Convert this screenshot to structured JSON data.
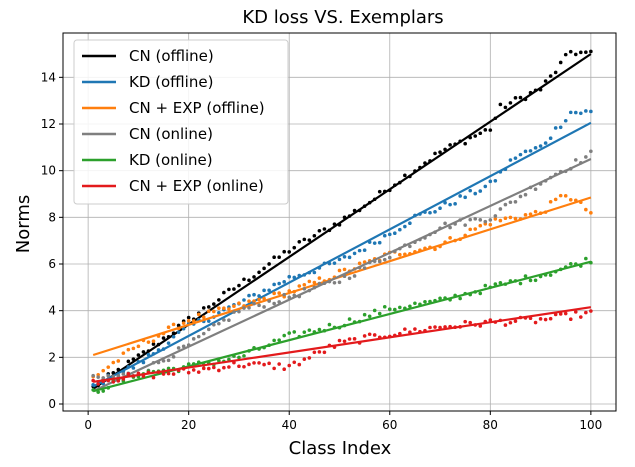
{
  "chart_data": {
    "type": "scatter",
    "title": "KD loss VS. Exemplars",
    "xlabel": "Class Index",
    "ylabel": "Norms",
    "xlim": [
      -5,
      105
    ],
    "ylim": [
      -0.3,
      15.9
    ],
    "xticks": [
      0,
      20,
      40,
      60,
      80,
      100
    ],
    "yticks": [
      0,
      2,
      4,
      6,
      8,
      10,
      12,
      14
    ],
    "grid": true,
    "legend_position": "top-left",
    "x_range": [
      1,
      100
    ],
    "series": [
      {
        "name": "CN (offline)",
        "color": "#000000",
        "fit": [
          0.65,
          15.0
        ],
        "dots": [
          [
            2,
            0.85
          ],
          [
            10,
            2.0
          ],
          [
            20,
            3.6
          ],
          [
            30,
            5.1
          ],
          [
            40,
            6.6
          ],
          [
            50,
            7.8
          ],
          [
            57,
            8.8
          ],
          [
            60,
            9.3
          ],
          [
            70,
            10.8
          ],
          [
            80,
            11.8
          ],
          [
            82,
            12.7
          ],
          [
            90,
            13.5
          ],
          [
            92,
            14.0
          ],
          [
            96,
            15.1
          ],
          [
            100,
            15.0
          ]
        ]
      },
      {
        "name": "KD (offline)",
        "color": "#1f77b4",
        "fit": [
          0.75,
          12.05
        ],
        "dots": [
          [
            2,
            0.9
          ],
          [
            10,
            1.7
          ],
          [
            20,
            3.3
          ],
          [
            30,
            4.3
          ],
          [
            40,
            5.4
          ],
          [
            50,
            6.1
          ],
          [
            60,
            7.3
          ],
          [
            65,
            8.0
          ],
          [
            70,
            8.4
          ],
          [
            80,
            9.4
          ],
          [
            85,
            10.6
          ],
          [
            90,
            11.0
          ],
          [
            96,
            12.5
          ],
          [
            100,
            12.5
          ]
        ]
      },
      {
        "name": "CN + EXP (offline)",
        "color": "#ff7f0e",
        "fit": [
          2.1,
          8.85
        ],
        "dots": [
          [
            2,
            1.3
          ],
          [
            10,
            2.5
          ],
          [
            20,
            3.6
          ],
          [
            30,
            4.2
          ],
          [
            40,
            4.8
          ],
          [
            50,
            5.6
          ],
          [
            60,
            6.4
          ],
          [
            70,
            6.8
          ],
          [
            80,
            7.8
          ],
          [
            90,
            8.2
          ],
          [
            95,
            9.0
          ],
          [
            100,
            8.2
          ]
        ]
      },
      {
        "name": "CN (online)",
        "color": "#7f7f7f",
        "fit": [
          0.55,
          10.5
        ],
        "dots": [
          [
            2,
            1.1
          ],
          [
            10,
            1.3
          ],
          [
            20,
            2.5
          ],
          [
            30,
            4.0
          ],
          [
            40,
            4.6
          ],
          [
            50,
            5.3
          ],
          [
            60,
            6.4
          ],
          [
            70,
            7.6
          ],
          [
            80,
            8.0
          ],
          [
            90,
            9.5
          ],
          [
            100,
            10.7
          ]
        ]
      },
      {
        "name": "KD (online)",
        "color": "#2ca02c",
        "fit": [
          0.55,
          6.1
        ],
        "dots": [
          [
            2,
            0.6
          ],
          [
            10,
            1.3
          ],
          [
            20,
            1.6
          ],
          [
            30,
            2.0
          ],
          [
            40,
            2.9
          ],
          [
            50,
            3.4
          ],
          [
            60,
            4.1
          ],
          [
            70,
            4.4
          ],
          [
            80,
            5.0
          ],
          [
            90,
            5.5
          ],
          [
            100,
            6.2
          ]
        ]
      },
      {
        "name": "CN + EXP (online)",
        "color": "#e31a1c",
        "fit": [
          0.95,
          4.15
        ],
        "dots": [
          [
            2,
            1.0
          ],
          [
            10,
            1.2
          ],
          [
            20,
            1.4
          ],
          [
            30,
            1.7
          ],
          [
            40,
            1.6
          ],
          [
            50,
            2.6
          ],
          [
            60,
            3.0
          ],
          [
            70,
            3.3
          ],
          [
            80,
            3.5
          ],
          [
            90,
            3.6
          ],
          [
            100,
            3.9
          ]
        ]
      }
    ]
  }
}
